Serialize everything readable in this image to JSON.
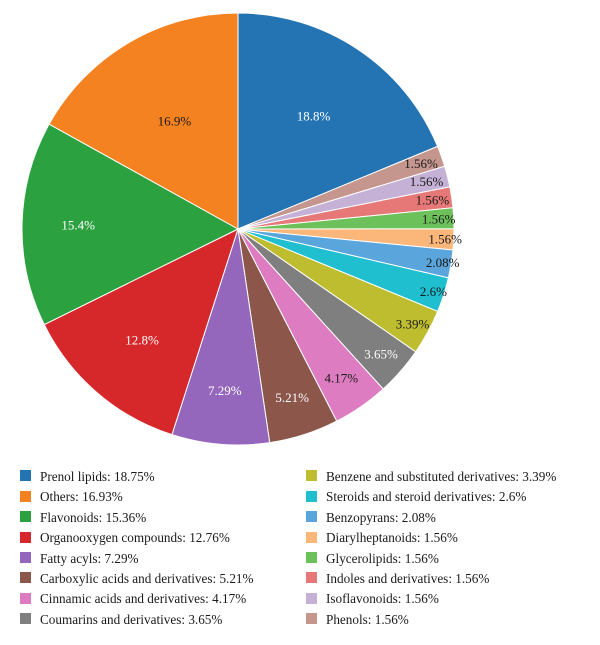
{
  "chart_data": {
    "type": "pie",
    "title": "",
    "legend_position": "bottom",
    "slices": [
      {
        "name": "Prenol lipids",
        "value": 18.75,
        "legend_label": "Prenol lipids: 18.75%",
        "slice_label": "18.8%",
        "color": "#2474b4",
        "label_color": "#ffffff"
      },
      {
        "name": "Phenols",
        "value": 1.56,
        "legend_label": "Phenols: 1.56%",
        "slice_label": "1.56%",
        "color": "#c4968e",
        "label_color": "#1a1a1a"
      },
      {
        "name": "Isoflavonoids",
        "value": 1.56,
        "legend_label": "Isoflavonoids: 1.56%",
        "slice_label": "1.56%",
        "color": "#c6b1d6",
        "label_color": "#1a1a1a"
      },
      {
        "name": "Indoles and derivatives",
        "value": 1.56,
        "legend_label": "Indoles and derivatives: 1.56%",
        "slice_label": "1.56%",
        "color": "#e67878",
        "label_color": "#1a1a1a"
      },
      {
        "name": "Glycerolipids",
        "value": 1.56,
        "legend_label": "Glycerolipids: 1.56%",
        "slice_label": "1.56%",
        "color": "#6cc15a",
        "label_color": "#1a1a1a"
      },
      {
        "name": "Diarylheptanoids",
        "value": 1.56,
        "legend_label": "Diarylheptanoids: 1.56%",
        "slice_label": "1.56%",
        "color": "#fbb77a",
        "label_color": "#1a1a1a"
      },
      {
        "name": "Benzopyrans",
        "value": 2.08,
        "legend_label": "Benzopyrans: 2.08%",
        "slice_label": "2.08%",
        "color": "#5aa6dc",
        "label_color": "#1a1a1a"
      },
      {
        "name": "Steroids and steroid derivatives",
        "value": 2.6,
        "legend_label": "Steroids and steroid derivatives: 2.6%",
        "slice_label": "2.6%",
        "color": "#1fbfd0",
        "label_color": "#1a1a1a"
      },
      {
        "name": "Benzene and substituted derivatives",
        "value": 3.39,
        "legend_label": "Benzene and substituted derivatives: 3.39%",
        "slice_label": "3.39%",
        "color": "#bebd2f",
        "label_color": "#1a1a1a"
      },
      {
        "name": "Coumarins and derivatives",
        "value": 3.65,
        "legend_label": "Coumarins and derivatives: 3.65%",
        "slice_label": "3.65%",
        "color": "#7f7f7f",
        "label_color": "#ffffff"
      },
      {
        "name": "Cinnamic acids and derivatives",
        "value": 4.17,
        "legend_label": "Cinnamic acids and derivatives: 4.17%",
        "slice_label": "4.17%",
        "color": "#dd7cc1",
        "label_color": "#1a1a1a"
      },
      {
        "name": "Carboxylic acids and derivatives",
        "value": 5.21,
        "legend_label": "Carboxylic acids and derivatives: 5.21%",
        "slice_label": "5.21%",
        "color": "#8c564b",
        "label_color": "#ffffff"
      },
      {
        "name": "Fatty acyls",
        "value": 7.29,
        "legend_label": "Fatty acyls: 7.29%",
        "slice_label": "7.29%",
        "color": "#9467bd",
        "label_color": "#ffffff"
      },
      {
        "name": "Organooxygen compounds",
        "value": 12.76,
        "legend_label": "Organooxygen compounds: 12.76%",
        "slice_label": "12.8%",
        "color": "#d6272a",
        "label_color": "#ffffff"
      },
      {
        "name": "Flavonoids",
        "value": 15.36,
        "legend_label": "Flavonoids: 15.36%",
        "slice_label": "15.4%",
        "color": "#2ca140",
        "label_color": "#ffffff"
      },
      {
        "name": "Others",
        "value": 16.93,
        "legend_label": "Others: 16.93%",
        "slice_label": "16.9%",
        "color": "#f58220",
        "label_color": "#1a1a1a"
      }
    ],
    "legend_left": [
      "Prenol lipids",
      "Others",
      "Flavonoids",
      "Organooxygen compounds",
      "Fatty acyls",
      "Carboxylic acids and derivatives",
      "Cinnamic acids and derivatives",
      "Coumarins and derivatives"
    ],
    "legend_right": [
      "Benzene and substituted derivatives",
      "Steroids and steroid derivatives",
      "Benzopyrans",
      "Diarylheptanoids",
      "Glycerolipids",
      "Indoles and derivatives",
      "Isoflavonoids",
      "Phenols"
    ]
  }
}
